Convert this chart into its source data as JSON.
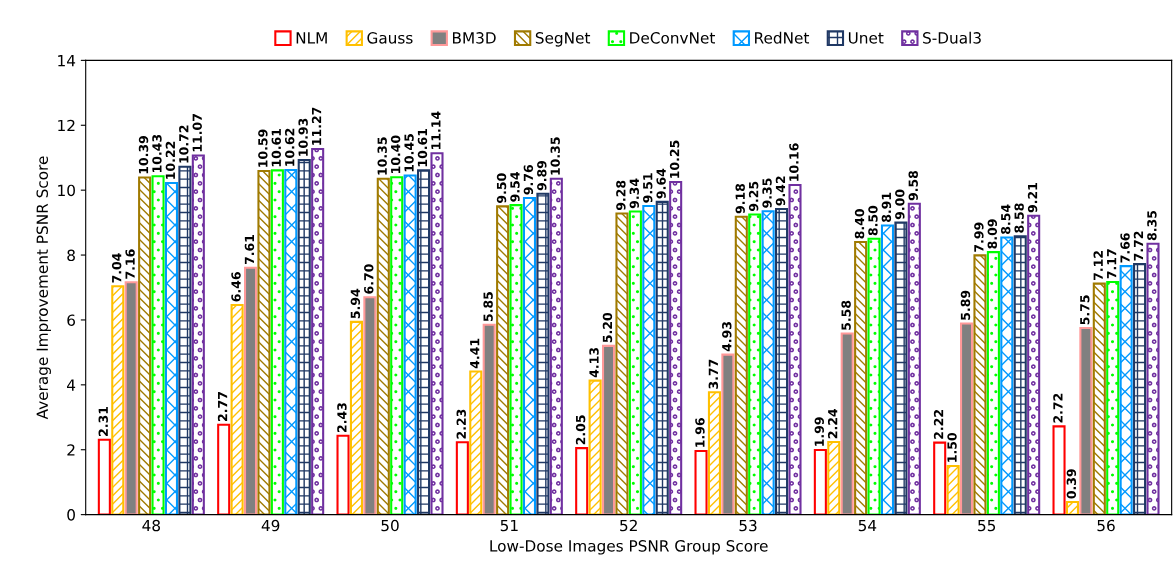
{
  "chart_data": {
    "type": "bar",
    "xlabel": "Low-Dose Images PSNR Group Score",
    "ylabel": "Average Improvement PSNR Score",
    "categories": [
      "48",
      "49",
      "50",
      "51",
      "52",
      "53",
      "54",
      "55",
      "56"
    ],
    "series": [
      {
        "name": "NLM",
        "color": "#ff0000",
        "values": [
          2.31,
          2.77,
          2.43,
          2.23,
          2.05,
          1.96,
          1.99,
          2.22,
          2.72
        ],
        "value_labels": [
          "2.31",
          "2.77",
          "2.43",
          "2.23",
          "2.05",
          "1.96",
          "1.99",
          "2.22",
          "2.72"
        ]
      },
      {
        "name": "Gauss",
        "color": "#ffc000",
        "values": [
          7.04,
          6.46,
          5.94,
          4.41,
          4.13,
          3.77,
          2.24,
          1.5,
          0.39
        ],
        "value_labels": [
          "7.04",
          "6.46",
          "5.94",
          "4.41",
          "4.13",
          "3.77",
          "2.24",
          "1.50",
          "0.39"
        ]
      },
      {
        "name": "BM3D",
        "color": "#ff9999",
        "values": [
          7.16,
          7.61,
          6.7,
          5.85,
          5.2,
          4.93,
          5.58,
          5.89,
          5.75
        ],
        "value_labels": [
          "7.16",
          "7.61",
          "6.70",
          "5.85",
          "5.20",
          "4.93",
          "5.58",
          "5.89",
          "5.75"
        ]
      },
      {
        "name": "SegNet",
        "color": "#a07a00",
        "values": [
          10.39,
          10.59,
          10.35,
          9.5,
          9.28,
          9.18,
          8.4,
          7.99,
          7.12
        ],
        "value_labels": [
          "10.39",
          "10.59",
          "10.35",
          "9.50",
          "9.28",
          "9.18",
          "8.40",
          "7.99",
          "7.12"
        ]
      },
      {
        "name": "DeConvNet",
        "color": "#00ff00",
        "values": [
          10.43,
          10.61,
          10.4,
          9.54,
          9.34,
          9.25,
          8.5,
          8.09,
          7.17
        ],
        "value_labels": [
          "10.43",
          "10.61",
          "10.40",
          "9.54",
          "9.34",
          "9.25",
          "8.50",
          "8.09",
          "7.17"
        ]
      },
      {
        "name": "RedNet",
        "color": "#0099ff",
        "values": [
          10.22,
          10.62,
          10.45,
          9.76,
          9.51,
          9.35,
          8.91,
          8.54,
          7.66
        ],
        "value_labels": [
          "10.22",
          "10.62",
          "10.45",
          "9.76",
          "9.51",
          "9.35",
          "8.91",
          "8.54",
          "7.66"
        ]
      },
      {
        "name": "Unet",
        "color": "#1f3864",
        "values": [
          10.72,
          10.93,
          10.61,
          9.89,
          9.64,
          9.42,
          9.0,
          8.58,
          7.72
        ],
        "value_labels": [
          "10.72",
          "10.93",
          "10.61",
          "9.89",
          "9.64",
          "9.42",
          "9.00",
          "8.58",
          "7.72"
        ]
      },
      {
        "name": "S-Dual3",
        "color": "#7030a0",
        "values": [
          11.07,
          11.27,
          11.14,
          10.35,
          10.25,
          10.16,
          9.58,
          9.21,
          8.35
        ],
        "value_labels": [
          "11.07",
          "11.27",
          "11.14",
          "10.35",
          "10.25",
          "10.16",
          "9.58",
          "9.21",
          "8.35"
        ]
      }
    ],
    "ylim": [
      0,
      14
    ],
    "yticks": [
      0,
      2,
      4,
      6,
      8,
      10,
      12,
      14
    ],
    "legend": "top"
  }
}
